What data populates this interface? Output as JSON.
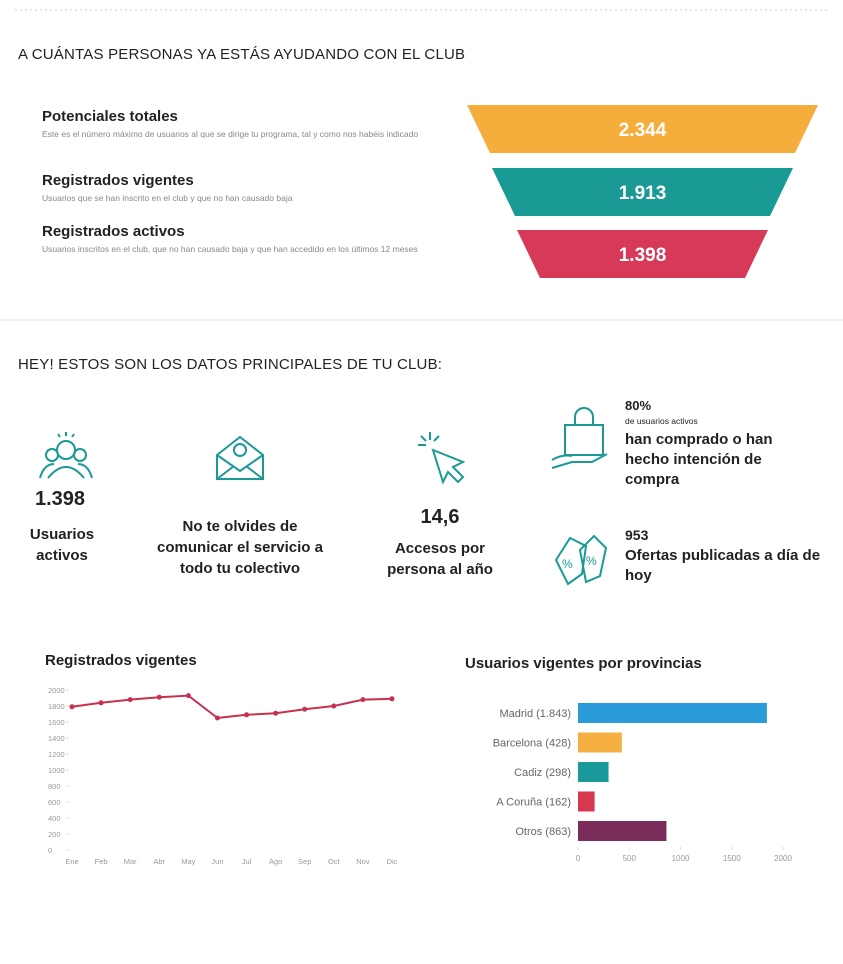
{
  "funnel_section": {
    "title": "A CUÁNTAS PERSONAS YA ESTÁS AYUDANDO CON EL CLUB",
    "items": [
      {
        "title": "Potenciales totales",
        "description": "Este es el número máximo de usuarios al que se dirige tu programa, tal y como nos habéis indicado",
        "value": "2.344",
        "color": "#f5ae3c"
      },
      {
        "title": "Registrados vigentes",
        "description": "Usuarios que se han inscrito en el club y que no han causado baja",
        "value": "1.913",
        "color": "#1a9a94"
      },
      {
        "title": "Registrados activos",
        "description": "Usuarios inscritos en el club, que no han causado baja y que han accedido en los últimos 12 meses",
        "value": "1.398",
        "color": "#d63a58"
      }
    ]
  },
  "stats_section": {
    "title": "HEY! ESTOS SON LOS DATOS PRINCIPALES DE TU CLUB:",
    "stats": [
      {
        "value": "1.398",
        "label": "Usuarios activos"
      },
      {
        "label": "No te olvides de comunicar el servicio a todo tu colectivo"
      },
      {
        "value": "14,6",
        "label": "Accesos por persona al año"
      }
    ],
    "highlights": [
      {
        "value": "80%",
        "note": "de usuarios activos",
        "text": "han comprado o han hecho intención de compra"
      },
      {
        "value": "953",
        "text": "Ofertas publicadas a día de hoy"
      }
    ]
  },
  "chart_data": [
    {
      "type": "line",
      "title": "Registrados vigentes",
      "categories": [
        "Ene",
        "Feb",
        "Mar",
        "Abr",
        "May",
        "Jun",
        "Jul",
        "Ago",
        "Sep",
        "Oct",
        "Nov",
        "Dic"
      ],
      "values": [
        1790,
        1840,
        1880,
        1910,
        1930,
        1650,
        1690,
        1710,
        1760,
        1800,
        1880,
        1890
      ],
      "color": "#c8304f",
      "ylim": [
        0,
        2000
      ],
      "yticks": [
        0,
        200,
        400,
        600,
        800,
        1000,
        1200,
        1400,
        1600,
        1800,
        2000
      ]
    },
    {
      "type": "hbar",
      "title": "Usuarios vigentes por provincias",
      "categories": [
        "Madrid (1.843)",
        "Barcelona (428)",
        "Cadiz (298)",
        "A Coruña (162)",
        "Otros (863)"
      ],
      "values": [
        1843,
        428,
        298,
        162,
        863
      ],
      "colors": [
        "#2b9ad9",
        "#f5b041",
        "#1a9a9a",
        "#d6384f",
        "#7a2d5a"
      ],
      "xlim": [
        0,
        2000
      ],
      "xticks": [
        0,
        500,
        1000,
        1500,
        2000
      ]
    }
  ]
}
